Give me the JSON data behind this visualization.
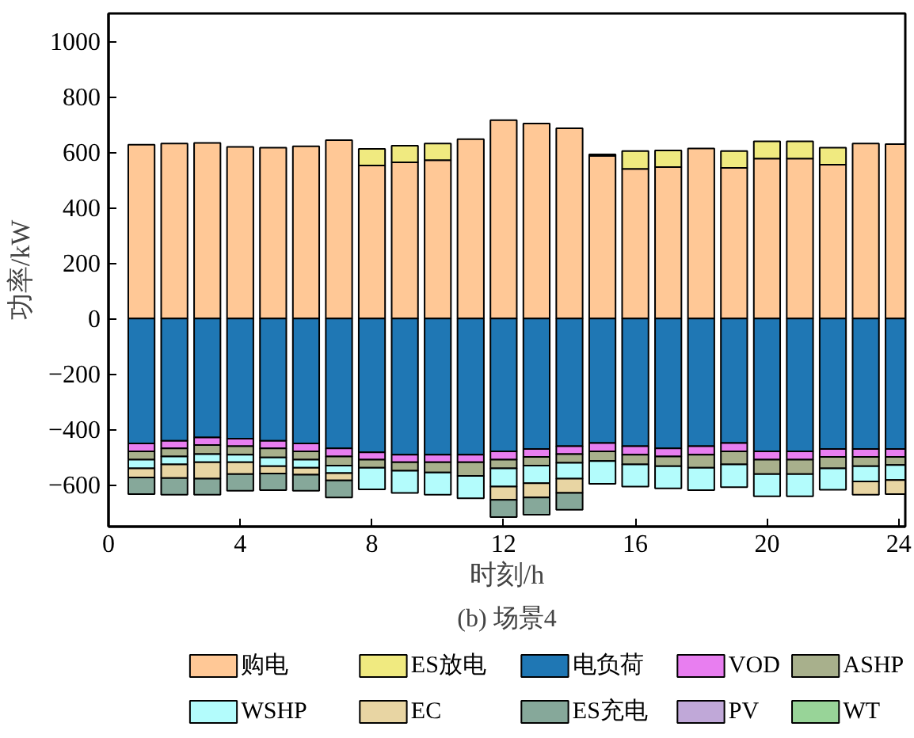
{
  "chart_data": {
    "type": "bar",
    "stacked": true,
    "title": "(b) 场景4",
    "xlabel": "时刻/h",
    "ylabel": "功率/kW",
    "x": [
      1,
      2,
      3,
      4,
      5,
      6,
      7,
      8,
      9,
      10,
      11,
      12,
      13,
      14,
      15,
      16,
      17,
      18,
      19,
      20,
      21,
      22,
      23,
      24
    ],
    "xlim": [
      0,
      24.2
    ],
    "xticks": [
      0,
      4,
      8,
      12,
      16,
      20,
      24
    ],
    "ylim": [
      -750,
      1100
    ],
    "yticks": [
      -600,
      -400,
      -200,
      0,
      200,
      400,
      600,
      800,
      1000
    ],
    "grid": false,
    "legend": "bottom",
    "series": [
      {
        "name": "购电",
        "color": "#ffc896",
        "values": [
          627,
          631,
          633,
          619,
          616,
          621,
          643,
          552,
          563,
          571,
          647,
          715,
          703,
          686,
          587,
          540,
          546,
          613,
          543,
          577,
          577,
          555,
          631,
          629
        ]
      },
      {
        "name": "ES放电",
        "color": "#f0ea80",
        "values": [
          0,
          0,
          0,
          0,
          0,
          0,
          0,
          60,
          60,
          60,
          0,
          0,
          0,
          0,
          5,
          64,
          60,
          0,
          61,
          62,
          62,
          61,
          0,
          0
        ]
      },
      {
        "name": "电负荷",
        "color": "#1f77b4",
        "values": [
          -450,
          -441,
          -429,
          -433,
          -441,
          -450,
          -468,
          -482,
          -491,
          -491,
          -491,
          -479,
          -470,
          -460,
          -449,
          -460,
          -468,
          -460,
          -449,
          -479,
          -479,
          -470,
          -470,
          -470
        ]
      },
      {
        "name": "VOD",
        "color": "#e87ef0",
        "values": [
          -29,
          -27,
          -27,
          -27,
          -27,
          -29,
          -29,
          -27,
          -27,
          -27,
          -27,
          -30,
          -29,
          -29,
          -30,
          -31,
          -29,
          -31,
          -30,
          -30,
          -30,
          -29,
          -29,
          -29
        ]
      },
      {
        "name": "ASHP",
        "color": "#a8b08c",
        "values": [
          -30,
          -29,
          -33,
          -31,
          -33,
          -30,
          -33,
          -29,
          -31,
          -37,
          -49,
          -31,
          -31,
          -31,
          -35,
          -35,
          -35,
          -47,
          -47,
          -52,
          -52,
          -41,
          -33,
          -29
        ]
      },
      {
        "name": "WSHP",
        "color": "#b3fcfc",
        "values": [
          -31,
          -29,
          -29,
          -27,
          -31,
          -29,
          -27,
          -78,
          -80,
          -80,
          -81,
          -66,
          -64,
          -57,
          -82,
          -80,
          -80,
          -81,
          -82,
          -80,
          -80,
          -77,
          -55,
          -54
        ]
      },
      {
        "name": "EC",
        "color": "#e8d5a3",
        "values": [
          -33,
          -49,
          -59,
          -43,
          -27,
          -25,
          -27,
          0,
          0,
          0,
          0,
          -48,
          -51,
          -52,
          0,
          0,
          0,
          0,
          0,
          0,
          0,
          0,
          -48,
          -51
        ]
      },
      {
        "name": "ES充电",
        "color": "#86a89a",
        "values": [
          -60,
          -60,
          -58,
          -60,
          -60,
          -58,
          -61,
          0,
          0,
          0,
          0,
          -62,
          -62,
          -60,
          0,
          0,
          0,
          0,
          0,
          0,
          0,
          0,
          0,
          0
        ]
      },
      {
        "name": "PV",
        "color": "#c0a8d8",
        "values": [
          0,
          0,
          0,
          0,
          0,
          0,
          0,
          0,
          0,
          0,
          0,
          0,
          0,
          0,
          0,
          0,
          0,
          0,
          0,
          0,
          0,
          0,
          0,
          0
        ]
      },
      {
        "name": "WT",
        "color": "#98d498",
        "values": [
          0,
          0,
          0,
          0,
          0,
          0,
          0,
          0,
          0,
          0,
          0,
          0,
          0,
          0,
          0,
          0,
          0,
          0,
          0,
          0,
          0,
          0,
          0,
          0
        ]
      }
    ]
  }
}
